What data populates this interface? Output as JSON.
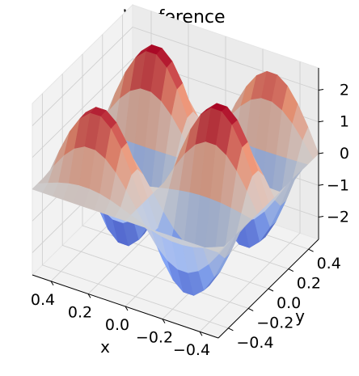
{
  "chart_data": {
    "type": "surface",
    "title_italic": "V",
    "title_rest": " reference",
    "xlabel": "x",
    "ylabel": "y",
    "xlim": [
      -0.5,
      0.5
    ],
    "ylim": [
      -0.5,
      0.5
    ],
    "zlim": [
      -2.7,
      2.7
    ],
    "x_ticks": [
      "−0.4",
      "−0.2",
      "0.0",
      "0.2",
      "0.4"
    ],
    "y_ticks": [
      "−0.4",
      "−0.2",
      "0.0",
      "0.2",
      "0.4"
    ],
    "z_ticks": [
      "−2",
      "−1",
      "0",
      "1",
      "2"
    ],
    "colormap": "coolwarm",
    "grid": true,
    "surface": {
      "x": [
        -0.5,
        -0.4444,
        -0.3889,
        -0.3333,
        -0.2778,
        -0.2222,
        -0.1667,
        -0.1111,
        -0.0556,
        0.0,
        0.0556,
        0.1111,
        0.1667,
        0.2222,
        0.2778,
        0.3333,
        0.3889,
        0.4444,
        0.5
      ],
      "y": [
        -0.5,
        -0.4444,
        -0.3889,
        -0.3333,
        -0.2778,
        -0.2222,
        -0.1667,
        -0.1111,
        -0.0556,
        0.0,
        0.0556,
        0.1111,
        0.1667,
        0.2222,
        0.2778,
        0.3333,
        0.3889,
        0.4444,
        0.5
      ],
      "z": [
        [
          -0.0,
          -0.0,
          -0.0,
          -0.0,
          -0.0,
          -0.0,
          -0.0,
          -0.0,
          -0.0,
          -0.0,
          -0.0,
          -0.0,
          -0.0,
          -0.0,
          -0.0,
          -0.0,
          -0.0,
          -0.0,
          -0.0
        ],
        [
          0.0,
          -0.132,
          -0.498,
          -0.806,
          -0.812,
          -0.481,
          0.071,
          0.596,
          0.906,
          0.898,
          0.568,
          0.01,
          -0.533,
          -0.883,
          -0.894,
          -0.544,
          -0.014,
          0.473,
          0.709
        ],
        [
          0.0,
          -0.249,
          -0.935,
          -1.514,
          -1.527,
          -0.905,
          0.134,
          1.12,
          1.703,
          1.688,
          1.067,
          0.019,
          -1.002,
          -1.659,
          -1.68,
          -1.022,
          -0.026,
          0.889,
          1.332
        ],
        [
          0.0,
          -0.335,
          -1.26,
          -2.04,
          -2.056,
          -1.219,
          0.181,
          1.509,
          2.295,
          2.273,
          1.437,
          0.025,
          -1.35,
          -2.235,
          -2.263,
          -1.377,
          -0.035,
          1.198,
          1.795
        ],
        [
          0.0,
          -0.381,
          -1.432,
          -2.319,
          -2.337,
          -1.386,
          0.205,
          1.715,
          2.609,
          2.584,
          1.634,
          0.029,
          -1.535,
          -2.541,
          -2.573,
          -1.565,
          -0.04,
          1.362,
          2.04
        ],
        [
          0.0,
          -0.381,
          -1.433,
          -2.321,
          -2.339,
          -1.387,
          0.206,
          1.716,
          2.611,
          2.586,
          1.635,
          0.029,
          -1.536,
          -2.543,
          -2.575,
          -1.567,
          -0.04,
          1.363,
          2.042
        ],
        [
          0.0,
          -0.336,
          -1.263,
          -2.045,
          -2.061,
          -1.222,
          0.181,
          1.512,
          2.3,
          2.279,
          1.441,
          0.025,
          -1.353,
          -2.241,
          -2.269,
          -1.381,
          -0.035,
          1.201,
          1.799
        ],
        [
          0.0,
          -0.25,
          -0.94,
          -1.521,
          -1.533,
          -0.909,
          0.135,
          1.125,
          1.711,
          1.695,
          1.072,
          0.019,
          -1.007,
          -1.667,
          -1.688,
          -1.027,
          -0.026,
          0.893,
          1.338
        ],
        [
          0.0,
          -0.133,
          -0.5,
          -0.81,
          -0.816,
          -0.484,
          0.072,
          0.599,
          0.911,
          0.902,
          0.571,
          0.01,
          -0.536,
          -0.887,
          -0.898,
          -0.547,
          -0.014,
          0.476,
          0.713
        ],
        [
          0.0,
          -0.0,
          -0.0,
          -0.0,
          -0.0,
          -0.0,
          0.0,
          0.0,
          0.0,
          0.0,
          0.0,
          0.0,
          -0.0,
          -0.0,
          -0.0,
          -0.0,
          -0.0,
          0.0,
          0.0
        ],
        [
          0.0,
          0.133,
          0.5,
          0.81,
          0.816,
          0.484,
          -0.072,
          -0.599,
          -0.911,
          -0.902,
          -0.571,
          -0.01,
          0.536,
          0.887,
          0.898,
          0.547,
          0.014,
          -0.476,
          -0.713
        ],
        [
          0.0,
          0.25,
          0.94,
          1.521,
          1.533,
          0.909,
          -0.135,
          -1.125,
          -1.711,
          -1.695,
          -1.072,
          -0.019,
          1.007,
          1.667,
          1.688,
          1.027,
          0.026,
          -0.893,
          -1.338
        ],
        [
          0.0,
          0.336,
          1.263,
          2.045,
          2.061,
          1.222,
          -0.181,
          -1.512,
          -2.3,
          -2.279,
          -1.441,
          -0.025,
          1.353,
          2.241,
          2.269,
          1.381,
          0.035,
          -1.201,
          -1.799
        ],
        [
          0.0,
          0.381,
          1.433,
          2.321,
          2.339,
          1.387,
          -0.206,
          -1.716,
          -2.611,
          -2.586,
          -1.635,
          -0.029,
          1.536,
          2.543,
          2.575,
          1.567,
          0.04,
          -1.363,
          -2.042
        ],
        [
          0.0,
          0.381,
          1.432,
          2.319,
          2.337,
          1.386,
          -0.205,
          -1.715,
          -2.609,
          -2.584,
          -1.634,
          -0.029,
          1.535,
          2.541,
          2.573,
          1.565,
          0.04,
          -1.362,
          -2.04
        ],
        [
          0.0,
          0.335,
          1.26,
          2.04,
          2.056,
          1.219,
          -0.181,
          -1.509,
          -2.295,
          -2.273,
          -1.437,
          -0.025,
          1.35,
          2.235,
          2.263,
          1.377,
          0.035,
          -1.198,
          -1.795
        ],
        [
          0.0,
          0.249,
          0.935,
          1.514,
          1.527,
          0.905,
          -0.134,
          -1.12,
          -1.703,
          -1.688,
          -1.067,
          -0.019,
          1.002,
          1.659,
          1.68,
          1.022,
          0.026,
          -0.889,
          -1.332
        ],
        [
          0.0,
          0.132,
          0.498,
          0.806,
          0.812,
          0.481,
          -0.071,
          -0.596,
          -0.906,
          -0.898,
          -0.568,
          -0.01,
          0.533,
          0.883,
          0.894,
          0.544,
          0.014,
          -0.473,
          -0.709
        ],
        [
          0.0,
          0.0,
          0.0,
          0.0,
          0.0,
          0.0,
          0.0,
          0.0,
          0.0,
          0.0,
          0.0,
          0.0,
          0.0,
          0.0,
          0.0,
          0.0,
          0.0,
          0.0,
          0.0
        ]
      ]
    }
  }
}
